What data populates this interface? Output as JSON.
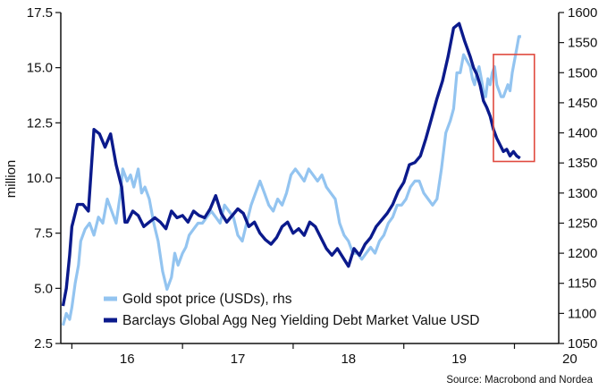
{
  "chart_data": {
    "type": "line",
    "ylabel": "million",
    "y_left_lim": [
      2.5,
      17.5
    ],
    "y_left_ticks": [
      "2.5",
      "5.0",
      "7.5",
      "10.0",
      "12.5",
      "15.0",
      "17.5"
    ],
    "y_right_lim": [
      1050,
      1600
    ],
    "y_right_ticks": [
      "1050",
      "1100",
      "1150",
      "1200",
      "1250",
      "1300",
      "1350",
      "1400",
      "1450",
      "1500",
      "1550",
      "1600"
    ],
    "x_ticks": [
      "16",
      "17",
      "18",
      "19",
      "20"
    ],
    "x_range": [
      2015.9,
      2020.4
    ],
    "source": "Source: Macrobond and Nordea",
    "series": [
      {
        "name": "Gold spot price (USDs), rhs",
        "axis": "right",
        "color": "#93c4f0",
        "x": [
          2015.92,
          2015.95,
          2015.98,
          2016.0,
          2016.03,
          2016.06,
          2016.08,
          2016.12,
          2016.16,
          2016.2,
          2016.24,
          2016.28,
          2016.32,
          2016.36,
          2016.4,
          2016.44,
          2016.46,
          2016.5,
          2016.53,
          2016.56,
          2016.6,
          2016.63,
          2016.66,
          2016.7,
          2016.74,
          2016.78,
          2016.82,
          2016.86,
          2016.9,
          2016.93,
          2016.96,
          2017.0,
          2017.03,
          2017.06,
          2017.1,
          2017.14,
          2017.18,
          2017.22,
          2017.26,
          2017.3,
          2017.34,
          2017.38,
          2017.42,
          2017.46,
          2017.5,
          2017.54,
          2017.58,
          2017.62,
          2017.66,
          2017.7,
          2017.74,
          2017.78,
          2017.82,
          2017.86,
          2017.9,
          2017.94,
          2017.98,
          2018.02,
          2018.06,
          2018.1,
          2018.14,
          2018.18,
          2018.22,
          2018.26,
          2018.3,
          2018.34,
          2018.38,
          2018.42,
          2018.46,
          2018.5,
          2018.54,
          2018.58,
          2018.62,
          2018.66,
          2018.7,
          2018.74,
          2018.78,
          2018.82,
          2018.86,
          2018.9,
          2018.94,
          2018.98,
          2019.02,
          2019.06,
          2019.1,
          2019.14,
          2019.18,
          2019.22,
          2019.26,
          2019.3,
          2019.34,
          2019.38,
          2019.42,
          2019.45,
          2019.48,
          2019.51,
          2019.54,
          2019.57,
          2019.6,
          2019.62,
          2019.64,
          2019.66,
          2019.68,
          2019.7,
          2019.72,
          2019.74,
          2019.76,
          2019.78,
          2019.8,
          2019.82,
          2019.84,
          2019.86,
          2019.88,
          2019.9,
          2019.92,
          2019.94,
          2019.96,
          2019.98,
          2020.0,
          2020.02,
          2020.04,
          2020.06
        ],
        "values": [
          1080,
          1100,
          1090,
          1110,
          1150,
          1180,
          1220,
          1240,
          1250,
          1230,
          1260,
          1250,
          1290,
          1270,
          1250,
          1300,
          1340,
          1320,
          1330,
          1310,
          1340,
          1300,
          1310,
          1290,
          1250,
          1220,
          1170,
          1140,
          1160,
          1200,
          1180,
          1200,
          1210,
          1230,
          1240,
          1250,
          1250,
          1260,
          1270,
          1260,
          1250,
          1280,
          1270,
          1260,
          1230,
          1220,
          1250,
          1280,
          1300,
          1320,
          1300,
          1280,
          1270,
          1290,
          1280,
          1300,
          1330,
          1340,
          1330,
          1320,
          1340,
          1330,
          1320,
          1330,
          1310,
          1300,
          1290,
          1250,
          1230,
          1220,
          1200,
          1200,
          1190,
          1200,
          1210,
          1200,
          1220,
          1230,
          1250,
          1260,
          1280,
          1280,
          1290,
          1310,
          1320,
          1320,
          1300,
          1290,
          1280,
          1290,
          1340,
          1400,
          1420,
          1440,
          1500,
          1500,
          1530,
          1520,
          1510,
          1490,
          1480,
          1500,
          1510,
          1490,
          1470,
          1460,
          1490,
          1480,
          1500,
          1510,
          1480,
          1470,
          1460,
          1460,
          1470,
          1480,
          1470,
          1500,
          1520,
          1540,
          1560,
          1560
        ]
      },
      {
        "name": "Barclays Global Agg Neg Yielding Debt Market Value USD",
        "axis": "left",
        "color": "#0b1a8c",
        "x": [
          2015.92,
          2015.95,
          2015.98,
          2016.0,
          2016.02,
          2016.05,
          2016.1,
          2016.15,
          2016.2,
          2016.25,
          2016.3,
          2016.35,
          2016.4,
          2016.45,
          2016.48,
          2016.5,
          2016.55,
          2016.6,
          2016.65,
          2016.7,
          2016.75,
          2016.8,
          2016.85,
          2016.9,
          2016.95,
          2017.0,
          2017.05,
          2017.1,
          2017.15,
          2017.2,
          2017.25,
          2017.3,
          2017.35,
          2017.4,
          2017.45,
          2017.5,
          2017.55,
          2017.6,
          2017.65,
          2017.7,
          2017.75,
          2017.8,
          2017.85,
          2017.9,
          2017.95,
          2018.0,
          2018.05,
          2018.1,
          2018.15,
          2018.2,
          2018.25,
          2018.3,
          2018.35,
          2018.4,
          2018.45,
          2018.5,
          2018.55,
          2018.6,
          2018.65,
          2018.7,
          2018.75,
          2018.8,
          2018.85,
          2018.9,
          2018.95,
          2019.0,
          2019.05,
          2019.1,
          2019.15,
          2019.2,
          2019.25,
          2019.3,
          2019.35,
          2019.4,
          2019.45,
          2019.5,
          2019.55,
          2019.6,
          2019.63,
          2019.66,
          2019.69,
          2019.72,
          2019.75,
          2019.78,
          2019.81,
          2019.84,
          2019.87,
          2019.9,
          2019.93,
          2019.96,
          2019.99,
          2020.02,
          2020.05
        ],
        "values": [
          4.2,
          5.0,
          6.5,
          7.8,
          8.2,
          8.8,
          8.8,
          8.5,
          12.2,
          12.0,
          11.4,
          12.0,
          10.6,
          9.6,
          8.0,
          8.0,
          8.5,
          8.3,
          7.8,
          8.0,
          8.2,
          8.0,
          7.7,
          8.5,
          8.2,
          8.3,
          8.0,
          8.5,
          8.3,
          8.2,
          8.6,
          9.2,
          8.4,
          8.0,
          8.3,
          8.6,
          8.4,
          7.8,
          8.0,
          7.5,
          7.2,
          7.0,
          7.3,
          7.8,
          8.0,
          7.5,
          7.7,
          7.4,
          8.0,
          7.8,
          7.3,
          6.8,
          6.5,
          6.8,
          6.4,
          6.0,
          6.8,
          6.5,
          7.0,
          7.3,
          7.8,
          8.1,
          8.4,
          8.8,
          9.4,
          9.8,
          10.6,
          10.7,
          11.0,
          11.8,
          12.7,
          13.6,
          14.4,
          15.5,
          16.8,
          17.0,
          16.2,
          15.5,
          15.0,
          14.7,
          14.2,
          13.5,
          13.2,
          12.8,
          12.2,
          11.8,
          11.5,
          11.2,
          11.3,
          11.0,
          11.2,
          11.0,
          10.9
        ]
      }
    ],
    "annotation": {
      "type": "rectangle",
      "color": "#e04a3f",
      "x_from": 2019.81,
      "x_to": 2020.18,
      "y_left_from": 10.75,
      "y_left_to": 15.6
    }
  }
}
